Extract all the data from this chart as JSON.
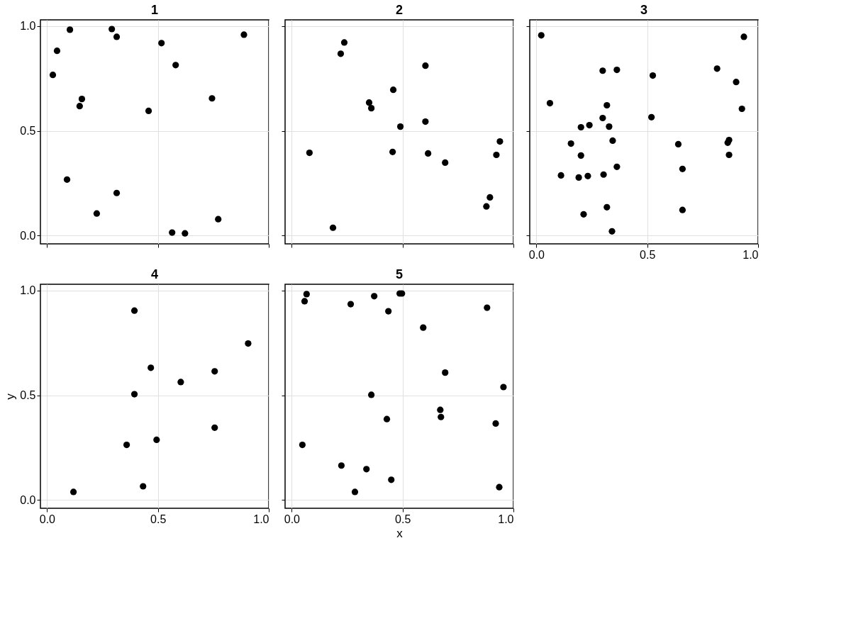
{
  "chart_data": [
    {
      "type": "scatter",
      "title": "1",
      "marker": "circle",
      "grid": true,
      "tick_labels": "y",
      "xlim": [
        -0.03,
        1.0
      ],
      "ylim": [
        -0.04,
        1.03
      ],
      "xticks": [
        {
          "value": 0,
          "label": null
        },
        {
          "value": 0.5,
          "label": null
        },
        {
          "value": 1,
          "label": null
        }
      ],
      "yticks": [
        {
          "value": 0,
          "label": "0.0"
        },
        {
          "value": 0.5,
          "label": "0.5"
        },
        {
          "value": 1,
          "label": "1.0"
        }
      ],
      "series": [
        {
          "color": "#000000",
          "x": [
            0.026,
            0.045,
            0.103,
            0.292,
            0.314,
            0.157,
            0.147,
            0.09,
            0.224,
            0.314,
            0.458,
            0.516,
            0.58,
            0.888,
            0.744,
            0.772,
            0.564,
            0.622
          ],
          "values": [
            0.767,
            0.882,
            0.983,
            0.986,
            0.949,
            0.652,
            0.618,
            0.267,
            0.105,
            0.203,
            0.595,
            0.919,
            0.814,
            0.959,
            0.655,
            0.078,
            0.014,
            0.01
          ]
        }
      ]
    },
    {
      "type": "scatter",
      "title": "2",
      "marker": "circle",
      "grid": true,
      "tick_labels": false,
      "xlim": [
        -0.03,
        1.0
      ],
      "ylim": [
        -0.04,
        1.03
      ],
      "xticks": [
        {
          "value": 0,
          "label": null
        },
        {
          "value": 0.5,
          "label": null
        },
        {
          "value": 1,
          "label": null
        }
      ],
      "yticks": [
        {
          "value": 0,
          "label": null
        },
        {
          "value": 0.5,
          "label": null
        },
        {
          "value": 1,
          "label": null
        }
      ],
      "series": [
        {
          "color": "#000000",
          "x": [
            0.221,
            0.237,
            0.08,
            0.186,
            0.349,
            0.359,
            0.458,
            0.49,
            0.455,
            0.603,
            0.603,
            0.615,
            0.692,
            0.894,
            0.878,
            0.923,
            0.939
          ],
          "values": [
            0.868,
            0.922,
            0.395,
            0.037,
            0.635,
            0.608,
            0.696,
            0.52,
            0.399,
            0.811,
            0.544,
            0.392,
            0.348,
            0.182,
            0.139,
            0.385,
            0.449
          ]
        }
      ]
    },
    {
      "type": "scatter",
      "title": "3",
      "marker": "circle",
      "grid": true,
      "tick_labels": "x",
      "xlim": [
        -0.03,
        1.0
      ],
      "ylim": [
        -0.04,
        1.03
      ],
      "xticks": [
        {
          "value": 0,
          "label": "0.0"
        },
        {
          "value": 0.5,
          "label": "0.5"
        },
        {
          "value": 1,
          "label": "1.0"
        }
      ],
      "yticks": [
        {
          "value": 0,
          "label": null
        },
        {
          "value": 0.5,
          "label": null
        },
        {
          "value": 1,
          "label": null
        }
      ],
      "series": [
        {
          "color": "#000000",
          "x": [
            0.022,
            0.061,
            0.111,
            0.156,
            0.201,
            0.201,
            0.191,
            0.213,
            0.239,
            0.232,
            0.299,
            0.363,
            0.318,
            0.299,
            0.328,
            0.344,
            0.363,
            0.303,
            0.318,
            0.341,
            0.525,
            0.519,
            0.64,
            0.659,
            0.659,
            0.815,
            0.901,
            0.936,
            0.927,
            0.869,
            0.863,
            0.869
          ],
          "values": [
            0.956,
            0.632,
            0.287,
            0.439,
            0.517,
            0.382,
            0.277,
            0.101,
            0.527,
            0.284,
            0.787,
            0.791,
            0.622,
            0.561,
            0.52,
            0.453,
            0.328,
            0.291,
            0.135,
            0.02,
            0.764,
            0.565,
            0.436,
            0.318,
            0.122,
            0.797,
            0.733,
            0.949,
            0.605,
            0.456,
            0.443,
            0.385
          ]
        }
      ]
    },
    {
      "type": "scatter",
      "title": "4",
      "ylabel": "y",
      "marker": "circle",
      "grid": true,
      "xlim": [
        -0.03,
        1.0
      ],
      "ylim": [
        -0.04,
        1.03
      ],
      "xticks": [
        {
          "value": 0,
          "label": "0.0"
        },
        {
          "value": 0.5,
          "label": "0.5"
        },
        {
          "value": 1,
          "label": "1.0"
        }
      ],
      "yticks": [
        {
          "value": 0,
          "label": "0.0"
        },
        {
          "value": 0.5,
          "label": "0.5"
        },
        {
          "value": 1,
          "label": "1.0"
        }
      ],
      "series": [
        {
          "color": "#000000",
          "x": [
            0.119,
            0.394,
            0.468,
            0.394,
            0.359,
            0.494,
            0.433,
            0.603,
            0.756,
            0.756,
            0.907
          ],
          "values": [
            0.038,
            0.904,
            0.631,
            0.505,
            0.263,
            0.287,
            0.065,
            0.563,
            0.614,
            0.345,
            0.747
          ]
        }
      ]
    },
    {
      "type": "scatter",
      "title": "5",
      "xlabel": "x",
      "marker": "circle",
      "grid": true,
      "tick_labels": "x",
      "xlim": [
        -0.03,
        1.0
      ],
      "ylim": [
        -0.04,
        1.03
      ],
      "xticks": [
        {
          "value": 0,
          "label": "0.0"
        },
        {
          "value": 0.5,
          "label": "0.5"
        },
        {
          "value": 1,
          "label": "1.0"
        }
      ],
      "yticks": [
        {
          "value": 0,
          "label": null
        },
        {
          "value": 0.5,
          "label": null
        },
        {
          "value": 1,
          "label": null
        }
      ],
      "series": [
        {
          "color": "#000000",
          "x": [
            0.067,
            0.058,
            0.048,
            0.266,
            0.372,
            0.436,
            0.487,
            0.497,
            0.593,
            0.359,
            0.429,
            0.224,
            0.337,
            0.285,
            0.449,
            0.692,
            0.67,
            0.673,
            0.881,
            0.955,
            0.92,
            0.936
          ],
          "values": [
            0.983,
            0.949,
            0.263,
            0.935,
            0.973,
            0.901,
            0.986,
            0.986,
            0.823,
            0.502,
            0.386,
            0.164,
            0.147,
            0.038,
            0.096,
            0.608,
            0.43,
            0.396,
            0.918,
            0.539,
            0.365,
            0.061
          ]
        }
      ]
    }
  ]
}
